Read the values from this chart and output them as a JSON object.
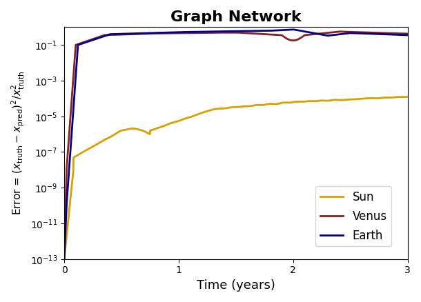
{
  "title": "Graph Network",
  "xlabel": "Time (years)",
  "xlim": [
    0,
    3
  ],
  "ylim_log": [
    -13,
    0
  ],
  "legend_labels": [
    "Sun",
    "Venus",
    "Earth"
  ],
  "colors": {
    "Sun": "#DAA000",
    "Venus": "#8B2020",
    "Earth": "#00008B"
  },
  "line_width": 2.0,
  "title_fontsize": 16,
  "label_fontsize": 13,
  "ylabel_fontsize": 11
}
